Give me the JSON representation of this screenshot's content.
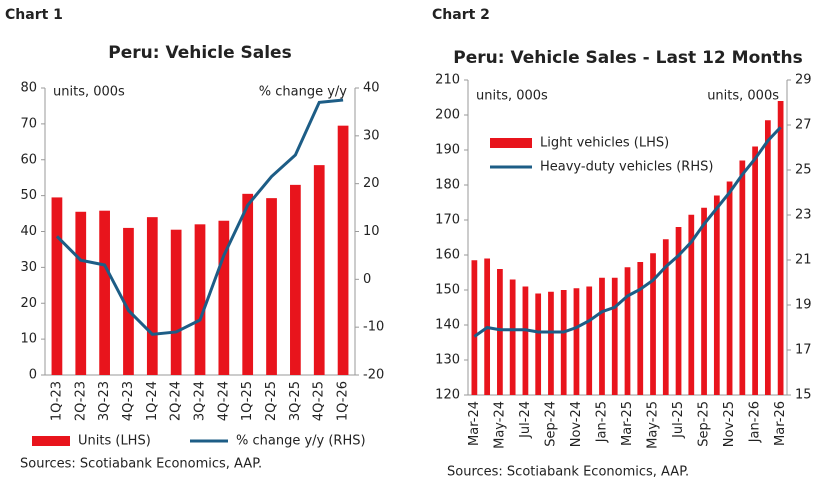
{
  "chart_data": [
    {
      "type": "bar_line",
      "label": "Chart 1",
      "title": "Peru: Vehicle Sales",
      "annotations": [
        "units, 000s",
        "% change y/y"
      ],
      "categories": [
        "1Q-23",
        "2Q-23",
        "3Q-23",
        "4Q-23",
        "1Q-24",
        "2Q-24",
        "3Q-24",
        "4Q-24",
        "1Q-25",
        "2Q-25",
        "3Q-25",
        "4Q-25",
        "1Q-26"
      ],
      "series": [
        {
          "name": "Units (LHS)",
          "color": "#e8141c",
          "values": [
            49.5,
            45.5,
            45.8,
            41,
            44,
            40.5,
            42,
            43,
            50.5,
            49.3,
            53,
            58.5,
            69.5
          ]
        },
        {
          "name": "% change y/y (RHS)",
          "color": "#1d5d86",
          "axis": "y2",
          "values": [
            9,
            4,
            3,
            -6.5,
            -11.5,
            -11,
            -8.5,
            5,
            15.5,
            21.5,
            26,
            37,
            37.5
          ]
        }
      ],
      "ylim": [
        0,
        80
      ],
      "yticks": [
        0,
        10,
        20,
        30,
        40,
        50,
        60,
        70,
        80
      ],
      "y2lim": [
        -20,
        40
      ],
      "y2ticks": [
        -20,
        -10,
        0,
        10,
        20,
        30,
        40
      ],
      "grid": false,
      "legend": "bottom",
      "sources": "Sources: Scotiabank Economics, AAP."
    },
    {
      "type": "bar_line",
      "label": "Chart 2",
      "title": "Peru: Vehicle Sales - Last 12 Months",
      "annotations": [
        "units, 000s",
        "units, 000s"
      ],
      "categories": [
        "Mar-24",
        null,
        "May-24",
        null,
        "Jul-24",
        null,
        "Sep-24",
        null,
        "Nov-24",
        null,
        "Jan-25",
        null,
        "Mar-25",
        null,
        "May-25",
        null,
        "Jul-25",
        null,
        "Sep-25",
        null,
        "Nov-25",
        null,
        "Jan-26",
        null,
        "Mar-26"
      ],
      "series": [
        {
          "name": "Light vehicles (LHS)",
          "color": "#e8141c",
          "values": [
            158.5,
            159,
            156,
            153,
            151,
            149,
            149.5,
            150,
            150.5,
            151,
            153.5,
            153.5,
            156.5,
            158,
            160.5,
            164.5,
            168,
            171.5,
            173.5,
            177,
            181,
            187,
            191,
            198.5,
            204
          ]
        },
        {
          "name": "Heavy-duty vehicles (RHS)",
          "color": "#1d5d86",
          "axis": "y2",
          "values": [
            17.6,
            18,
            17.9,
            17.9,
            17.9,
            17.8,
            17.8,
            17.8,
            18,
            18.3,
            18.7,
            18.9,
            19.4,
            19.7,
            20.1,
            20.7,
            21.2,
            21.8,
            22.6,
            23.3,
            24,
            24.8,
            25.5,
            26.3,
            26.9
          ]
        }
      ],
      "ylim": [
        120,
        210
      ],
      "yticks": [
        120,
        130,
        140,
        150,
        160,
        170,
        180,
        190,
        200,
        210
      ],
      "y2lim": [
        15,
        29
      ],
      "y2ticks": [
        15,
        17,
        19,
        21,
        23,
        25,
        27,
        29
      ],
      "grid": false,
      "legend": "top-left",
      "sources": "Sources: Scotiabank Economics, AAP."
    }
  ]
}
